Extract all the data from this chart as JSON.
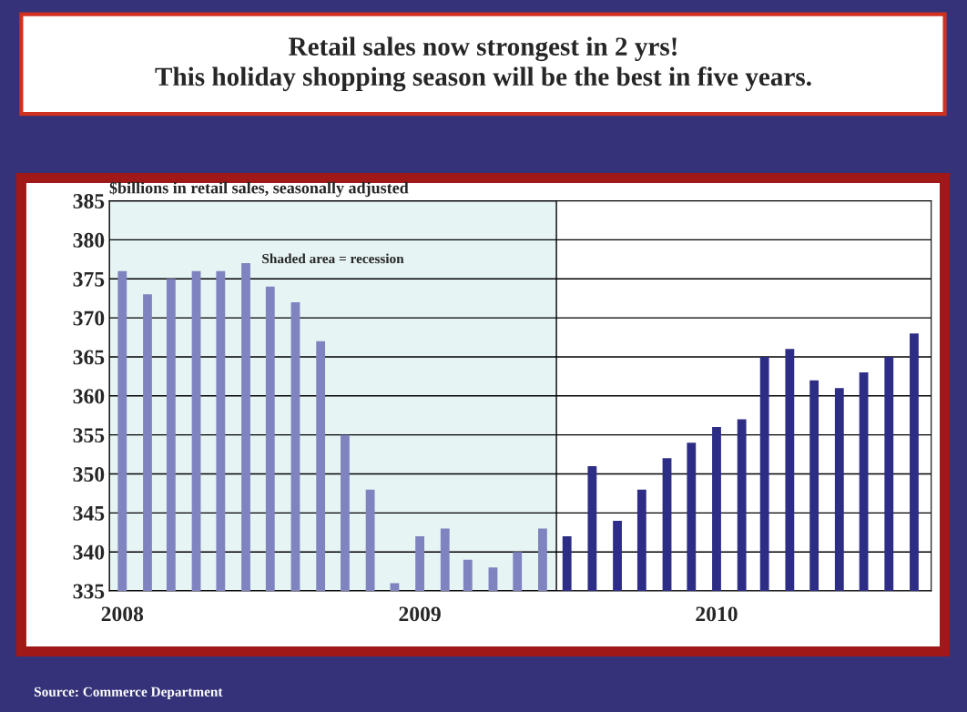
{
  "chart_data": {
    "type": "bar",
    "title": "Retail sales now strongest in 2 yrs!\nThis holiday shopping season will be the best in five years.",
    "ylabel": "$billions in retail sales, seasonally adjusted",
    "x": [
      "2008-01",
      "2008-02",
      "2008-03",
      "2008-04",
      "2008-05",
      "2008-06",
      "2008-07",
      "2008-08",
      "2008-09",
      "2008-10",
      "2008-11",
      "2008-12",
      "2009-01",
      "2009-02",
      "2009-03",
      "2009-04",
      "2009-05",
      "2009-06",
      "2009-07",
      "2009-08",
      "2009-09",
      "2009-10",
      "2009-11",
      "2009-12",
      "2010-01",
      "2010-02",
      "2010-03",
      "2010-04",
      "2010-05",
      "2010-06",
      "2010-07",
      "2010-08",
      "2010-09"
    ],
    "values": [
      376,
      373,
      375,
      376,
      376,
      377,
      374,
      372,
      367,
      355,
      348,
      336,
      342,
      343,
      339,
      338,
      340,
      343,
      342,
      351,
      344,
      348,
      352,
      354,
      356,
      357,
      365,
      366,
      362,
      361,
      363,
      365,
      368
    ],
    "colors": [
      "#7f84c0",
      "#7f84c0",
      "#7f84c0",
      "#7f84c0",
      "#7f84c0",
      "#7f84c0",
      "#7f84c0",
      "#7f84c0",
      "#7f84c0",
      "#7f84c0",
      "#7f84c0",
      "#7f84c0",
      "#7f84c0",
      "#7f84c0",
      "#7f84c0",
      "#7f84c0",
      "#7f84c0",
      "#7f84c0",
      "#2e2d85",
      "#2e2d85",
      "#2e2d85",
      "#2e2d85",
      "#2e2d85",
      "#2e2d85",
      "#2e2d85",
      "#2e2d85",
      "#2e2d85",
      "#2e2d85",
      "#2e2d85",
      "#2e2d85",
      "#2e2d85",
      "#2e2d85",
      "#2e2d85"
    ],
    "xlim": [
      "2007-12-16",
      "2010-09-22"
    ],
    "xticks": [
      "2008",
      "2009",
      "2010"
    ],
    "ylim": [
      335,
      385
    ],
    "yticks": [
      335,
      340,
      345,
      350,
      355,
      360,
      365,
      370,
      375,
      380,
      385
    ],
    "grid": "y",
    "bands": [
      {
        "axis": "x",
        "from": "2007-12-16",
        "to": "2009-06-18",
        "label": "Shaded area = recession",
        "color": "#e6f4f3"
      }
    ],
    "annotations": [
      "Source: Commerce Department"
    ]
  }
}
